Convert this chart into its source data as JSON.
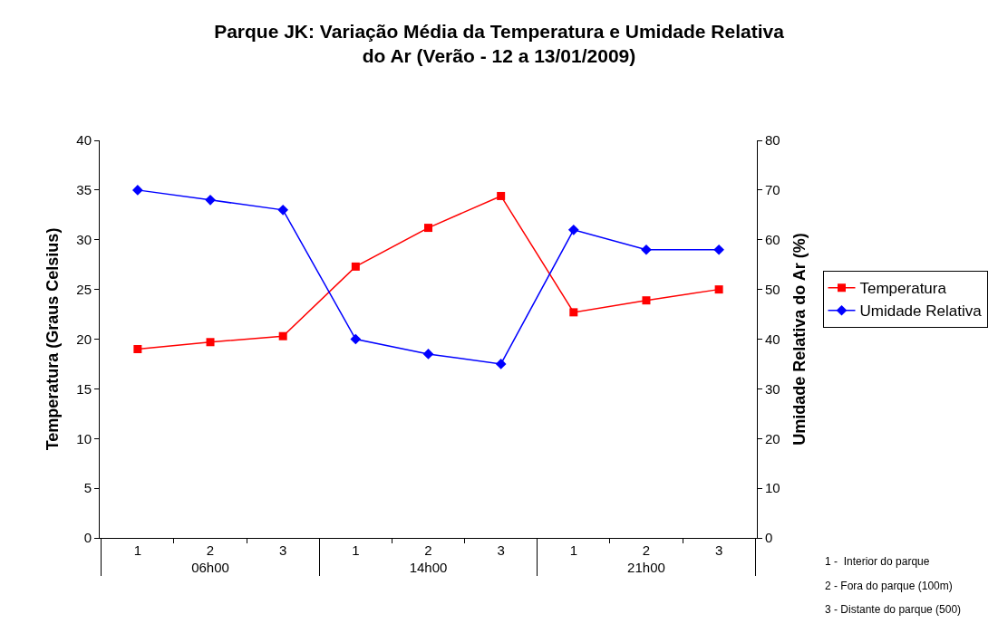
{
  "chart_data": {
    "type": "line",
    "title": "Parque JK: Variação Média da Temperatura e Umidade Relativa\ndo Ar (Verão - 12 a 13/01/2009)",
    "categories": [
      "1",
      "2",
      "3",
      "1",
      "2",
      "3",
      "1",
      "2",
      "3"
    ],
    "series": [
      {
        "name": "Temperatura",
        "color": "#ff0000",
        "marker": "square",
        "values": [
          19.0,
          19.7,
          20.3,
          27.3,
          31.2,
          34.4,
          22.7,
          23.9,
          25.0
        ]
      },
      {
        "name": "Umidade Relativa",
        "color": "#0000ff",
        "marker": "diamond",
        "axis": "y2",
        "values": [
          70,
          68,
          66,
          40,
          37,
          35,
          62,
          58,
          58
        ]
      }
    ],
    "ylabel": "Temperatura (Graus Celsius)",
    "y2label": "Umidade Relativa do Ar (%)",
    "ylim": [
      0,
      40
    ],
    "yticks": [
      0,
      5,
      10,
      15,
      20,
      25,
      30,
      35,
      40
    ],
    "y2lim": [
      0,
      80
    ],
    "y2ticks": [
      0,
      10,
      20,
      30,
      40,
      50,
      60,
      70,
      80
    ],
    "annotations": [
      "06h00",
      "14h00",
      "21h00",
      "1 -  Interior do parque",
      "2 - Fora do parque (100m)",
      "3 - Distante do parque (500)"
    ],
    "legend": "right"
  }
}
